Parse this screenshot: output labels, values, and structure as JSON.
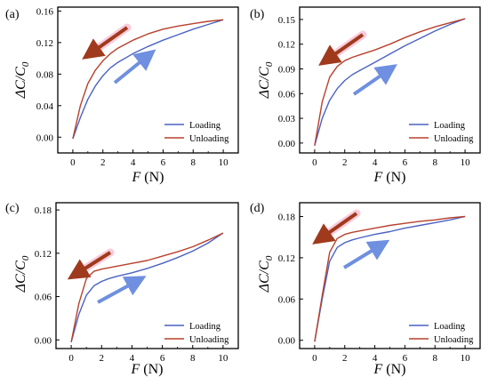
{
  "colors": {
    "loading": "#4a62c4",
    "unloading": "#b8402c",
    "loading_arrow": "#6f8fe0",
    "unloading_arrow": "#a03a1c",
    "unloading_arrow_glow": "#f06a9a"
  },
  "chart_data": [
    {
      "type": "line",
      "panel_label": "(a)",
      "xlabel": "F (N)",
      "ylabel": "ΔC/C0",
      "xlim": [
        -1,
        11
      ],
      "ylim": [
        -0.02,
        0.165
      ],
      "xticks": [
        "0",
        "2",
        "4",
        "6",
        "8",
        "10"
      ],
      "yticks": [
        "0.00",
        "0.04",
        "0.08",
        "0.12",
        "0.16"
      ],
      "series": [
        {
          "name": "Loading",
          "x": [
            0,
            0.5,
            1,
            1.5,
            2,
            2.5,
            3,
            4,
            5,
            6,
            7,
            8,
            9,
            10
          ],
          "y": [
            -0.002,
            0.025,
            0.048,
            0.065,
            0.078,
            0.088,
            0.095,
            0.106,
            0.115,
            0.123,
            0.13,
            0.137,
            0.143,
            0.149
          ]
        },
        {
          "name": "Unloading",
          "x": [
            0,
            0.5,
            1,
            1.5,
            2,
            2.5,
            3,
            4,
            5,
            6,
            7,
            8,
            9,
            10
          ],
          "y": [
            -0.002,
            0.04,
            0.068,
            0.085,
            0.097,
            0.106,
            0.113,
            0.123,
            0.131,
            0.137,
            0.141,
            0.144,
            0.147,
            0.149
          ]
        }
      ]
    },
    {
      "type": "line",
      "panel_label": "(b)",
      "xlabel": "F (N)",
      "ylabel": "ΔC/C0",
      "xlim": [
        -1,
        11
      ],
      "ylim": [
        -0.012,
        0.165
      ],
      "xticks": [
        "0",
        "2",
        "4",
        "6",
        "8",
        "10"
      ],
      "yticks": [
        "0.00",
        "0.03",
        "0.06",
        "0.09",
        "0.12",
        "0.15"
      ],
      "series": [
        {
          "name": "Loading",
          "x": [
            0,
            0.5,
            1,
            1.5,
            2,
            2.5,
            3,
            4,
            5,
            6,
            7,
            8,
            9,
            10
          ],
          "y": [
            -0.003,
            0.03,
            0.052,
            0.066,
            0.076,
            0.083,
            0.088,
            0.098,
            0.108,
            0.118,
            0.127,
            0.136,
            0.144,
            0.151
          ]
        },
        {
          "name": "Unloading",
          "x": [
            0,
            0.5,
            1,
            1.5,
            2,
            2.5,
            3,
            4,
            5,
            6,
            7,
            8,
            9,
            10
          ],
          "y": [
            -0.003,
            0.05,
            0.08,
            0.093,
            0.1,
            0.104,
            0.107,
            0.113,
            0.12,
            0.128,
            0.135,
            0.141,
            0.146,
            0.151
          ]
        }
      ]
    },
    {
      "type": "line",
      "panel_label": "(c)",
      "xlabel": "F (N)",
      "ylabel": "ΔC/C0",
      "xlim": [
        -1,
        11
      ],
      "ylim": [
        -0.012,
        0.19
      ],
      "xticks": [
        "0",
        "2",
        "4",
        "6",
        "8",
        "10"
      ],
      "yticks": [
        "0.00",
        "0.06",
        "0.12",
        "0.18"
      ],
      "series": [
        {
          "name": "Loading",
          "x": [
            0,
            0.5,
            1,
            1.5,
            2,
            2.5,
            3,
            4,
            5,
            6,
            7,
            8,
            9,
            10
          ],
          "y": [
            -0.003,
            0.035,
            0.062,
            0.075,
            0.081,
            0.085,
            0.088,
            0.093,
            0.099,
            0.106,
            0.114,
            0.123,
            0.134,
            0.148
          ]
        },
        {
          "name": "Unloading",
          "x": [
            0,
            0.5,
            1,
            1.5,
            2,
            2.5,
            3,
            4,
            5,
            6,
            7,
            8,
            9,
            10
          ],
          "y": [
            -0.003,
            0.05,
            0.085,
            0.095,
            0.098,
            0.1,
            0.102,
            0.106,
            0.11,
            0.116,
            0.122,
            0.129,
            0.138,
            0.148
          ]
        }
      ]
    },
    {
      "type": "line",
      "panel_label": "(d)",
      "xlabel": "F (N)",
      "ylabel": "ΔC/C0",
      "xlim": [
        -1,
        11
      ],
      "ylim": [
        -0.012,
        0.2
      ],
      "xticks": [
        "0",
        "2",
        "4",
        "6",
        "8",
        "10"
      ],
      "yticks": [
        "0.00",
        "0.06",
        "0.12",
        "0.18"
      ],
      "series": [
        {
          "name": "Loading",
          "x": [
            0,
            0.5,
            1,
            1.5,
            2,
            2.5,
            3,
            4,
            5,
            6,
            7,
            8,
            9,
            10
          ],
          "y": [
            -0.002,
            0.06,
            0.115,
            0.135,
            0.142,
            0.146,
            0.149,
            0.154,
            0.158,
            0.163,
            0.167,
            0.171,
            0.175,
            0.18
          ]
        },
        {
          "name": "Unloading",
          "x": [
            0,
            0.5,
            1,
            1.5,
            2,
            2.5,
            3,
            4,
            5,
            6,
            7,
            8,
            9,
            10
          ],
          "y": [
            -0.002,
            0.065,
            0.128,
            0.148,
            0.154,
            0.157,
            0.159,
            0.163,
            0.167,
            0.17,
            0.173,
            0.175,
            0.178,
            0.18
          ]
        }
      ]
    }
  ]
}
